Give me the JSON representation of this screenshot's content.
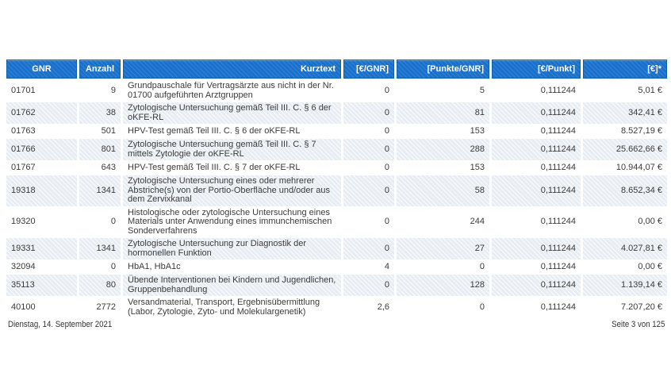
{
  "report": {
    "columns": [
      {
        "label": "GNR"
      },
      {
        "label": "Anzahl"
      },
      {
        "label": "Kurztext"
      },
      {
        "label": "[€/GNR]"
      },
      {
        "label": "[Punkte/GNR]"
      },
      {
        "label": "[€/Punkt]"
      },
      {
        "label": "[€]*"
      }
    ],
    "rows": [
      {
        "gnr": "01701",
        "anzahl": "9",
        "kurztext": "Grundpauschale für Vertragsärzte aus nicht in der Nr. 01700 aufgeführten Arztgruppen",
        "eur_gnr": "0",
        "punkte_gnr": "5",
        "eur_punkt": "0,111244",
        "eur": "5,01 €"
      },
      {
        "gnr": "01762",
        "anzahl": "38",
        "kurztext": "Zytologische Untersuchung gemäß Teil III. C. § 6 der oKFE-RL",
        "eur_gnr": "0",
        "punkte_gnr": "81",
        "eur_punkt": "0,111244",
        "eur": "342,41 €"
      },
      {
        "gnr": "01763",
        "anzahl": "501",
        "kurztext": "HPV-Test gemäß Teil III. C. § 6 der oKFE-RL",
        "eur_gnr": "0",
        "punkte_gnr": "153",
        "eur_punkt": "0,111244",
        "eur": "8.527,19 €"
      },
      {
        "gnr": "01766",
        "anzahl": "801",
        "kurztext": "Zytologische Untersuchung gemäß Teil III. C. § 7 mittels Zytologie der oKFE-RL",
        "eur_gnr": "0",
        "punkte_gnr": "288",
        "eur_punkt": "0,111244",
        "eur": "25.662,66 €"
      },
      {
        "gnr": "01767",
        "anzahl": "643",
        "kurztext": "HPV-Test gemäß Teil III. C. § 7 der oKFE-RL",
        "eur_gnr": "0",
        "punkte_gnr": "153",
        "eur_punkt": "0,111244",
        "eur": "10.944,07 €"
      },
      {
        "gnr": "19318",
        "anzahl": "1341",
        "kurztext": "Zytologische Untersuchung eines oder mehrerer Abstriche(s) von der Portio-Oberfläche und/oder aus dem Zervixkanal",
        "eur_gnr": "0",
        "punkte_gnr": "58",
        "eur_punkt": "0,111244",
        "eur": "8.652,34 €"
      },
      {
        "gnr": "19320",
        "anzahl": "0",
        "kurztext": "Histologische oder zytologische Untersuchung eines Materials unter Anwendung eines immunchemischen Sonderverfahrens",
        "eur_gnr": "0",
        "punkte_gnr": "244",
        "eur_punkt": "0,111244",
        "eur": "0,00 €"
      },
      {
        "gnr": "19331",
        "anzahl": "1341",
        "kurztext": "Zytologische Untersuchung zur Diagnostik der hormonellen Funktion",
        "eur_gnr": "0",
        "punkte_gnr": "27",
        "eur_punkt": "0,111244",
        "eur": "4.027,81 €"
      },
      {
        "gnr": "32094",
        "anzahl": "0",
        "kurztext": "HbA1, HbA1c",
        "eur_gnr": "4",
        "punkte_gnr": "0",
        "eur_punkt": "0,111244",
        "eur": "0,00 €"
      },
      {
        "gnr": "35113",
        "anzahl": "80",
        "kurztext": "Übende Interventionen bei Kindern und Jugendlichen, Gruppenbehandlung",
        "eur_gnr": "0",
        "punkte_gnr": "128",
        "eur_punkt": "0,111244",
        "eur": "1.139,14 €"
      },
      {
        "gnr": "40100",
        "anzahl": "2772",
        "kurztext": "Versandmaterial, Transport, Ergebnisübermittlung (Labor, Zytologie, Zyto- und Molekulargenetik)",
        "eur_gnr": "2,6",
        "punkte_gnr": "0",
        "eur_punkt": "0,111244",
        "eur": "7.207,20 €"
      }
    ],
    "footer": {
      "date": "Dienstag, 14. September 2021",
      "page": "Seite 3 von 125"
    },
    "colors": {
      "header_bg": "#1b74d0",
      "header_border": "#0e5fb0",
      "row_shade": "#e7edf2",
      "text": "#3b3b3b",
      "header_text": "#ffffff"
    }
  }
}
